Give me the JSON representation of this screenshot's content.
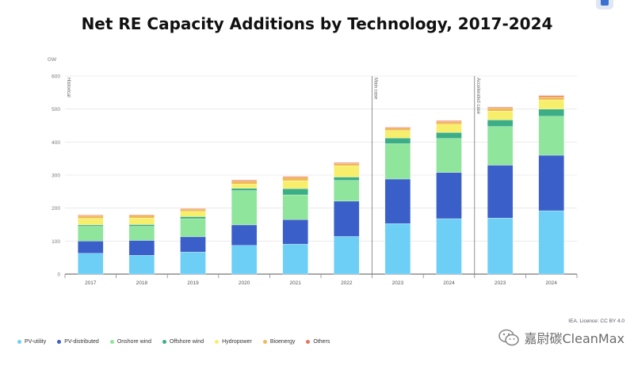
{
  "title": "Net RE Capacity Additions by Technology, 2017-2024",
  "credit": "IEA. Licence: CC BY 4.0",
  "watermark": "嘉尉碳CleanMax",
  "chart_data": {
    "type": "bar",
    "stacked": true,
    "unit": "GW",
    "ylim": [
      0,
      600
    ],
    "yticks": [
      0,
      100,
      200,
      300,
      400,
      500,
      600
    ],
    "grid": true,
    "legend_position": "bottom",
    "categories": [
      "2017",
      "2018",
      "2019",
      "2020",
      "2021",
      "2022",
      "2023",
      "2024",
      "2023",
      "2024"
    ],
    "sections": [
      {
        "label": "Historical",
        "start": 0
      },
      {
        "label": "Main case",
        "start": 6
      },
      {
        "label": "Accelerated case",
        "start": 8
      }
    ],
    "series": [
      {
        "name": "PV-utility",
        "color": "#6dcff6",
        "values": [
          63,
          57,
          67,
          87,
          91,
          114,
          153,
          168,
          170,
          192
        ]
      },
      {
        "name": "PV-distributed",
        "color": "#3b5fc8",
        "values": [
          37,
          45,
          46,
          62,
          74,
          107,
          135,
          140,
          160,
          168
        ]
      },
      {
        "name": "Onshore wind",
        "color": "#8ee59b",
        "values": [
          45,
          43,
          55,
          104,
          75,
          63,
          107,
          103,
          117,
          118
        ]
      },
      {
        "name": "Offshore wind",
        "color": "#3cae86",
        "values": [
          4,
          5,
          6,
          7,
          19,
          10,
          17,
          18,
          20,
          22
        ]
      },
      {
        "name": "Hydropower",
        "color": "#f7ef6b",
        "values": [
          20,
          20,
          16,
          13,
          24,
          34,
          23,
          25,
          27,
          28
        ]
      },
      {
        "name": "Bioenergy",
        "color": "#f0b955",
        "values": [
          8,
          8,
          7,
          9,
          10,
          7,
          7,
          8,
          9,
          9
        ]
      },
      {
        "name": "Others",
        "color": "#e9745f",
        "values": [
          2,
          2,
          2,
          3,
          3,
          3,
          3,
          3,
          3,
          4
        ]
      }
    ]
  }
}
